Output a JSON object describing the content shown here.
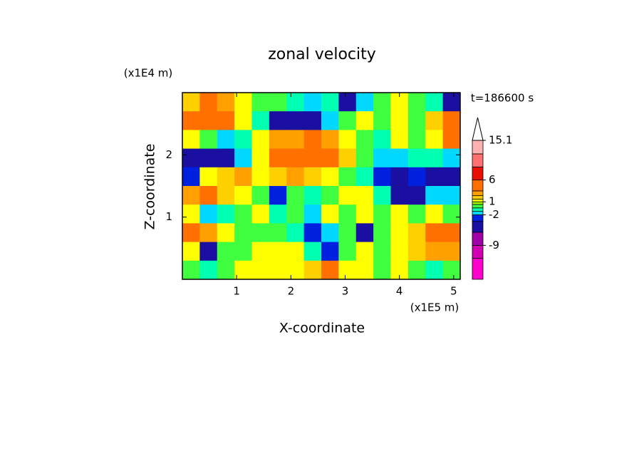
{
  "chart_data": {
    "type": "contour",
    "title": "zonal velocity",
    "x_label": "X-coordinate",
    "y_label": "Z-coordinate",
    "x_unit": "(x1E5 m)",
    "y_unit": "(x1E4 m)",
    "time_label": "t=186600 s",
    "xlim": [
      0,
      5.12
    ],
    "ylim": [
      0,
      3
    ],
    "xticks": [
      1,
      2,
      3,
      4,
      5
    ],
    "yticks": [
      1,
      2
    ],
    "z": [
      [
        2,
        4,
        3,
        1,
        0,
        0,
        -1,
        -2,
        -1,
        -5,
        -2,
        0,
        1,
        0,
        -1,
        -5
      ],
      [
        4,
        5,
        4,
        1,
        -1,
        -5,
        -6,
        -5,
        -2,
        0,
        1,
        0,
        1,
        0,
        2,
        4
      ],
      [
        1,
        0,
        -2,
        -1,
        1,
        3,
        3,
        4,
        3,
        1,
        0,
        -1,
        1,
        0,
        1,
        4
      ],
      [
        -5,
        -6,
        -5,
        -2,
        1,
        4,
        5,
        4,
        4,
        2,
        0,
        -2,
        -2,
        -1,
        -1,
        -2
      ],
      [
        -3,
        1,
        2,
        3,
        1,
        2,
        3,
        2,
        1,
        0,
        -1,
        -3,
        -5,
        -3,
        -5,
        -4
      ],
      [
        3,
        4,
        2,
        1,
        0,
        -3,
        0,
        -1,
        0,
        1,
        1,
        -1,
        -5,
        -4,
        -2,
        -2
      ],
      [
        1,
        -2,
        -1,
        0,
        1,
        -1,
        0,
        -2,
        1,
        0,
        1,
        0,
        1,
        0,
        1,
        0
      ],
      [
        4,
        3,
        1,
        0,
        0,
        0,
        -1,
        -3,
        -2,
        0,
        -4,
        0,
        1,
        2,
        4,
        4
      ],
      [
        1,
        -4,
        0,
        0,
        1,
        1,
        1,
        -1,
        -3,
        0,
        1,
        0,
        1,
        2,
        3,
        3
      ],
      [
        0,
        -1,
        0,
        1,
        1,
        1,
        1,
        2,
        4,
        1,
        1,
        0,
        1,
        0,
        -1,
        0
      ]
    ],
    "colorbar": {
      "levels": [
        -16.8,
        -12,
        -9,
        -6,
        -3.5,
        -2,
        -1.2,
        -0.4,
        0.4,
        1,
        1.6,
        2.4,
        3.5,
        6,
        9,
        12,
        15.1
      ],
      "colors": [
        "#ff00cc",
        "#d000b0",
        "#a000a8",
        "#1a0fa0",
        "#0020e0",
        "#00d8ff",
        "#00ffb0",
        "#40ff40",
        "#a0ff00",
        "#ffff00",
        "#ffd000",
        "#ffa000",
        "#ff7000",
        "#e81000",
        "#ff7070",
        "#ffb0b0"
      ],
      "ticks": [
        15.1,
        6,
        1,
        -2,
        -9
      ]
    }
  }
}
